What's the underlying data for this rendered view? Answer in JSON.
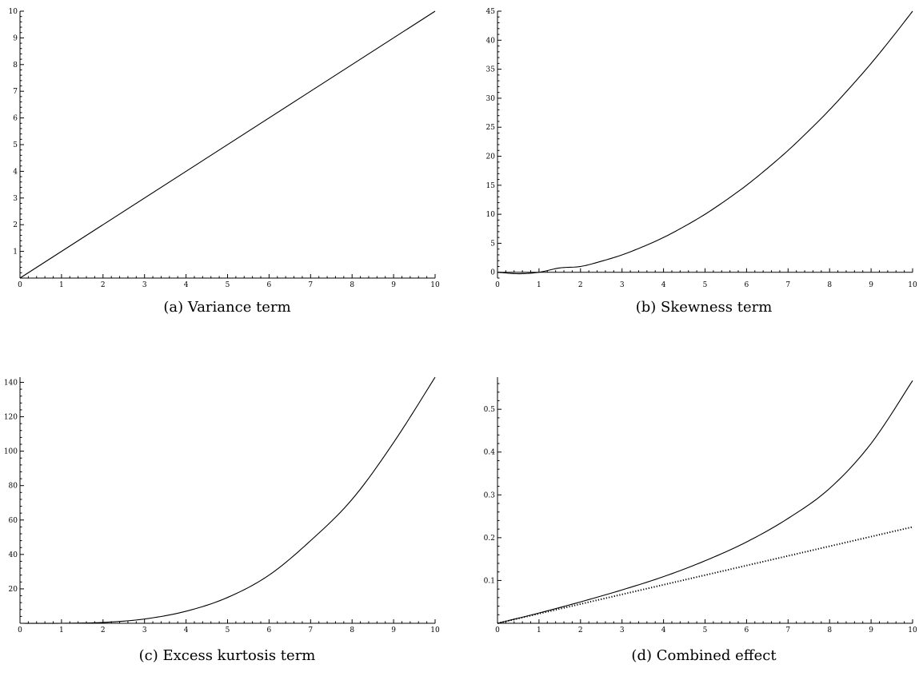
{
  "chart_data": [
    {
      "type": "line",
      "caption": "(a) Variance term",
      "xlim": [
        0,
        10
      ],
      "ylim": [
        0,
        10
      ],
      "xticks": [
        0,
        1,
        2,
        3,
        4,
        5,
        6,
        7,
        8,
        9,
        10
      ],
      "yticks": [
        1,
        2,
        3,
        4,
        5,
        6,
        7,
        8,
        9,
        10
      ],
      "ytick_labels": [
        "1",
        "2",
        "3",
        "4",
        "5",
        "6",
        "7",
        "8",
        "9",
        "10"
      ],
      "series": [
        {
          "style": "solid",
          "x": [
            0,
            10
          ],
          "y": [
            0,
            10
          ]
        }
      ]
    },
    {
      "type": "line",
      "caption": "(b) Skewness term",
      "xlim": [
        0,
        10
      ],
      "ylim": [
        -1,
        45
      ],
      "xticks": [
        0,
        1,
        2,
        3,
        4,
        5,
        6,
        7,
        8,
        9,
        10
      ],
      "yticks": [
        0,
        5,
        10,
        15,
        20,
        25,
        30,
        35,
        40,
        45
      ],
      "ytick_labels": [
        "0",
        "5",
        "10",
        "15",
        "20",
        "25",
        "30",
        "35",
        "40",
        "45"
      ],
      "baseline": 0,
      "series": [
        {
          "style": "solid",
          "x": [
            0,
            0.5,
            1,
            1.5,
            2,
            2.5,
            3,
            3.5,
            4,
            4.5,
            5,
            5.5,
            6,
            6.5,
            7,
            7.5,
            8,
            8.5,
            9,
            9.5,
            10
          ],
          "y": [
            0,
            -0.25,
            0,
            0.75,
            1,
            1.9,
            3,
            4.4,
            6,
            7.9,
            10,
            12.4,
            15,
            17.9,
            21,
            24.4,
            28,
            31.9,
            36,
            40.4,
            45
          ]
        }
      ]
    },
    {
      "type": "line",
      "caption": "(c) Excess kurtosis term",
      "xlim": [
        0,
        10
      ],
      "ylim": [
        0,
        143
      ],
      "xticks": [
        0,
        1,
        2,
        3,
        4,
        5,
        6,
        7,
        8,
        9,
        10
      ],
      "yticks": [
        20,
        40,
        60,
        80,
        100,
        120,
        140
      ],
      "ytick_labels": [
        "20",
        "40",
        "60",
        "80",
        "100",
        "120",
        "140"
      ],
      "series": [
        {
          "style": "solid",
          "x": [
            0,
            1,
            2,
            3,
            4,
            5,
            6,
            7,
            8,
            9,
            10
          ],
          "y": [
            0,
            0,
            0.5,
            2.5,
            7,
            15,
            28,
            48,
            72,
            105,
            143
          ]
        }
      ]
    },
    {
      "type": "line",
      "caption": "(d) Combined effect",
      "xlim": [
        0,
        10
      ],
      "ylim": [
        0,
        0.575
      ],
      "xticks": [
        0,
        1,
        2,
        3,
        4,
        5,
        6,
        7,
        8,
        9,
        10
      ],
      "yticks": [
        0.1,
        0.2,
        0.3,
        0.4,
        0.5
      ],
      "ytick_labels": [
        "0.1",
        "0.2",
        "0.3",
        "0.4",
        "0.5"
      ],
      "series": [
        {
          "style": "solid",
          "x": [
            0,
            1,
            2,
            3,
            4,
            5,
            6,
            7,
            8,
            9,
            10
          ],
          "y": [
            0,
            0.024,
            0.05,
            0.078,
            0.109,
            0.146,
            0.19,
            0.245,
            0.315,
            0.42,
            0.567
          ]
        },
        {
          "style": "dotted",
          "x": [
            0,
            10
          ],
          "y": [
            0,
            0.225
          ]
        }
      ]
    }
  ]
}
